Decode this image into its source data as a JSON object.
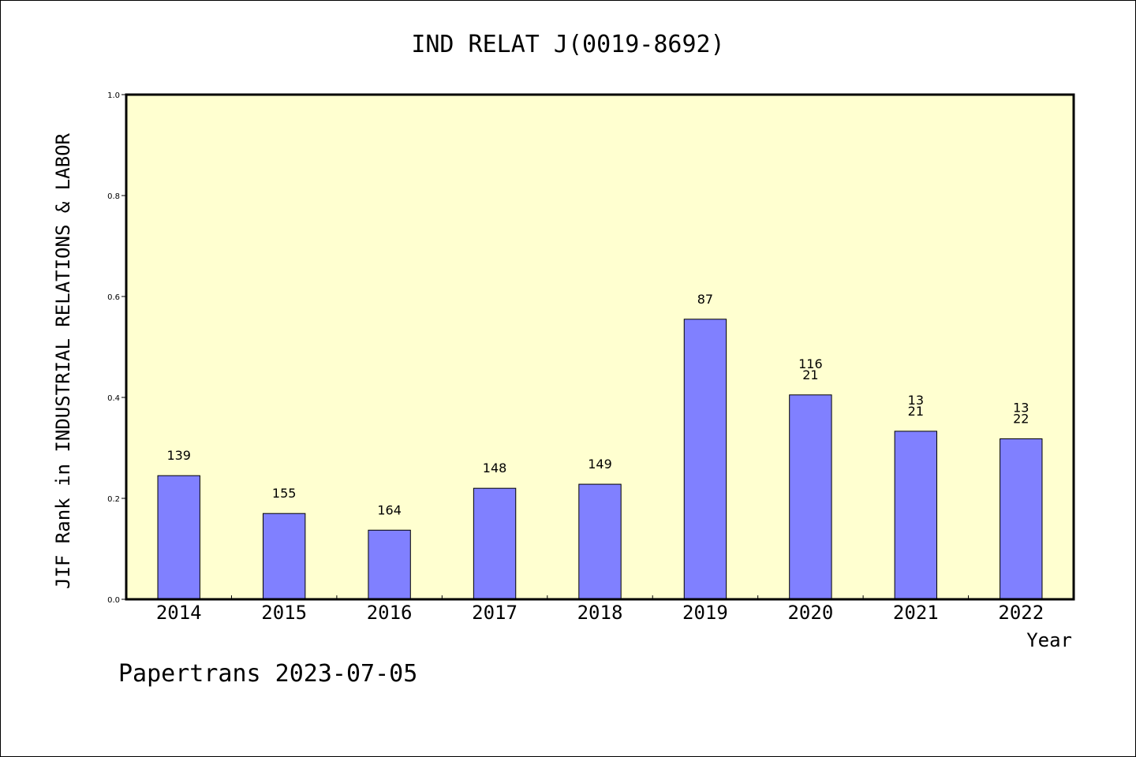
{
  "chart_data": {
    "type": "bar",
    "title": "IND RELAT J(0019-8692)",
    "xlabel": "Year",
    "ylabel": "JIF Rank in INDUSTRIAL RELATIONS & LABOR",
    "ylim": [
      0,
      1.0
    ],
    "yticks": [
      "0.0",
      "0.2",
      "0.4",
      "0.6",
      "0.8",
      "1.0"
    ],
    "categories": [
      "2014",
      "2015",
      "2016",
      "2017",
      "2018",
      "2019",
      "2020",
      "2021",
      "2022"
    ],
    "values": [
      0.245,
      0.17,
      0.137,
      0.22,
      0.228,
      0.555,
      0.405,
      0.333,
      0.318
    ],
    "labels": [
      [
        "139"
      ],
      [
        "155"
      ],
      [
        "164"
      ],
      [
        "148"
      ],
      [
        "149"
      ],
      [
        "87"
      ],
      [
        "116",
        "21"
      ],
      [
        "13",
        "21"
      ],
      [
        "13",
        "22"
      ]
    ],
    "grid": false,
    "colors": {
      "bar": "#8080ff",
      "plot_bg": "#ffffd0"
    }
  },
  "footer": "Papertrans 2023-07-05"
}
